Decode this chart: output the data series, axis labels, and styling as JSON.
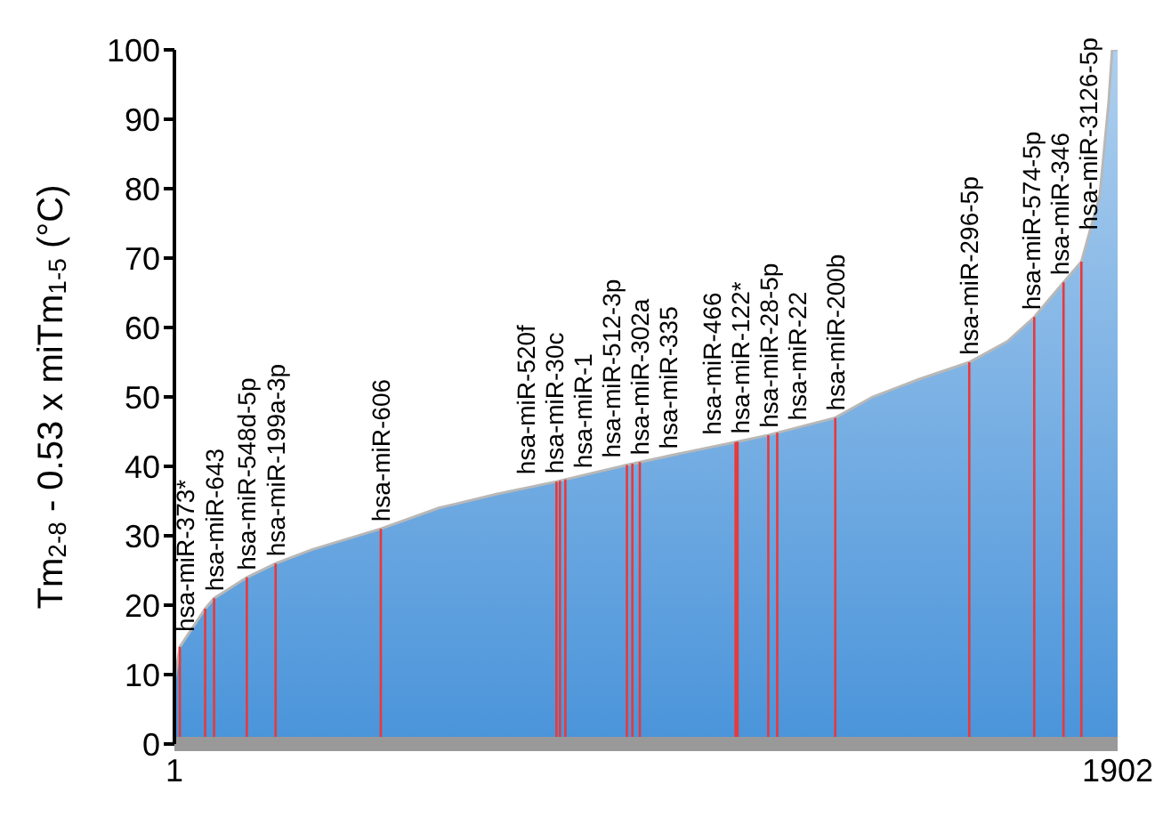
{
  "chart_data": {
    "type": "area",
    "ylabel": "Tm$_{2-8}$ - 0.53 x miTm$_{1-5}$ (°C)",
    "color": "#4a94da",
    "x": [
      1,
      12,
      63,
      81,
      147,
      205,
      278,
      417,
      534,
      650,
      771,
      913,
      1030,
      1132,
      1198,
      1333,
      1408,
      1500,
      1603,
      1680,
      1734,
      1793,
      1829,
      1866,
      1884,
      1891,
      1902
    ],
    "values": [
      9,
      14,
      19.5,
      21,
      24,
      26,
      28,
      31,
      34,
      36,
      37.8,
      40.2,
      42,
      43.5,
      44.5,
      47,
      50,
      52.5,
      55,
      58,
      61.5,
      66.5,
      69.5,
      79,
      92.5,
      100,
      100
    ],
    "xlim": [
      1,
      1902
    ],
    "xticks": [
      1,
      1902
    ],
    "ylim": [
      0,
      100
    ],
    "yticks": [
      0,
      10,
      20,
      30,
      40,
      50,
      60,
      70,
      80,
      90,
      100
    ],
    "grid": false,
    "legend": false,
    "ref_lines": [
      {
        "axis": "x",
        "value": 12,
        "label": "hsa-miR-373*",
        "color": "#e8393a"
      },
      {
        "axis": "x",
        "value": 63,
        "color": "#e8393a"
      },
      {
        "axis": "x",
        "value": 81,
        "label": "hsa-miR-643",
        "color": "#e8393a"
      },
      {
        "axis": "x",
        "value": 147,
        "label": "hsa-miR-548d-5p",
        "color": "#e8393a"
      },
      {
        "axis": "x",
        "value": 205,
        "label": "hsa-miR-199a-3p",
        "color": "#e8393a"
      },
      {
        "axis": "x",
        "value": 417,
        "label": "hsa-miR-606",
        "color": "#e8393a"
      },
      {
        "axis": "x",
        "value": 771,
        "label": "hsa-miR-520f",
        "color": "#e8393a"
      },
      {
        "axis": "x",
        "value": 778,
        "label": "hsa-miR-30c",
        "color": "#e8393a"
      },
      {
        "axis": "x",
        "value": 789,
        "label": "hsa-miR-1",
        "color": "#e8393a"
      },
      {
        "axis": "x",
        "value": 913,
        "label": "hsa-miR-512-3p",
        "color": "#e8393a"
      },
      {
        "axis": "x",
        "value": 924,
        "label": "hsa-miR-302a",
        "color": "#e8393a"
      },
      {
        "axis": "x",
        "value": 939,
        "label": "hsa-miR-335",
        "color": "#e8393a"
      },
      {
        "axis": "x",
        "value": 1132,
        "label": "hsa-miR-466",
        "color": "#e8393a"
      },
      {
        "axis": "x",
        "value": 1136,
        "label": "hsa-miR-122*",
        "color": "#e8393a"
      },
      {
        "axis": "x",
        "value": 1198,
        "label": "hsa-miR-28-5p",
        "color": "#e8393a"
      },
      {
        "axis": "x",
        "value": 1216,
        "label": "hsa-miR-22",
        "color": "#e8393a"
      },
      {
        "axis": "x",
        "value": 1333,
        "label": "hsa-miR-200b",
        "color": "#e8393a"
      },
      {
        "axis": "x",
        "value": 1603,
        "label": "hsa-miR-296-5p",
        "color": "#e8393a"
      },
      {
        "axis": "x",
        "value": 1734,
        "label": "hsa-miR-574-5p",
        "color": "#e8393a"
      },
      {
        "axis": "x",
        "value": 1793,
        "label": "hsa-miR-346",
        "color": "#e8393a"
      },
      {
        "axis": "x",
        "value": 1829,
        "label": "hsa-miR-3126-5p",
        "color": "#e8393a"
      }
    ]
  }
}
